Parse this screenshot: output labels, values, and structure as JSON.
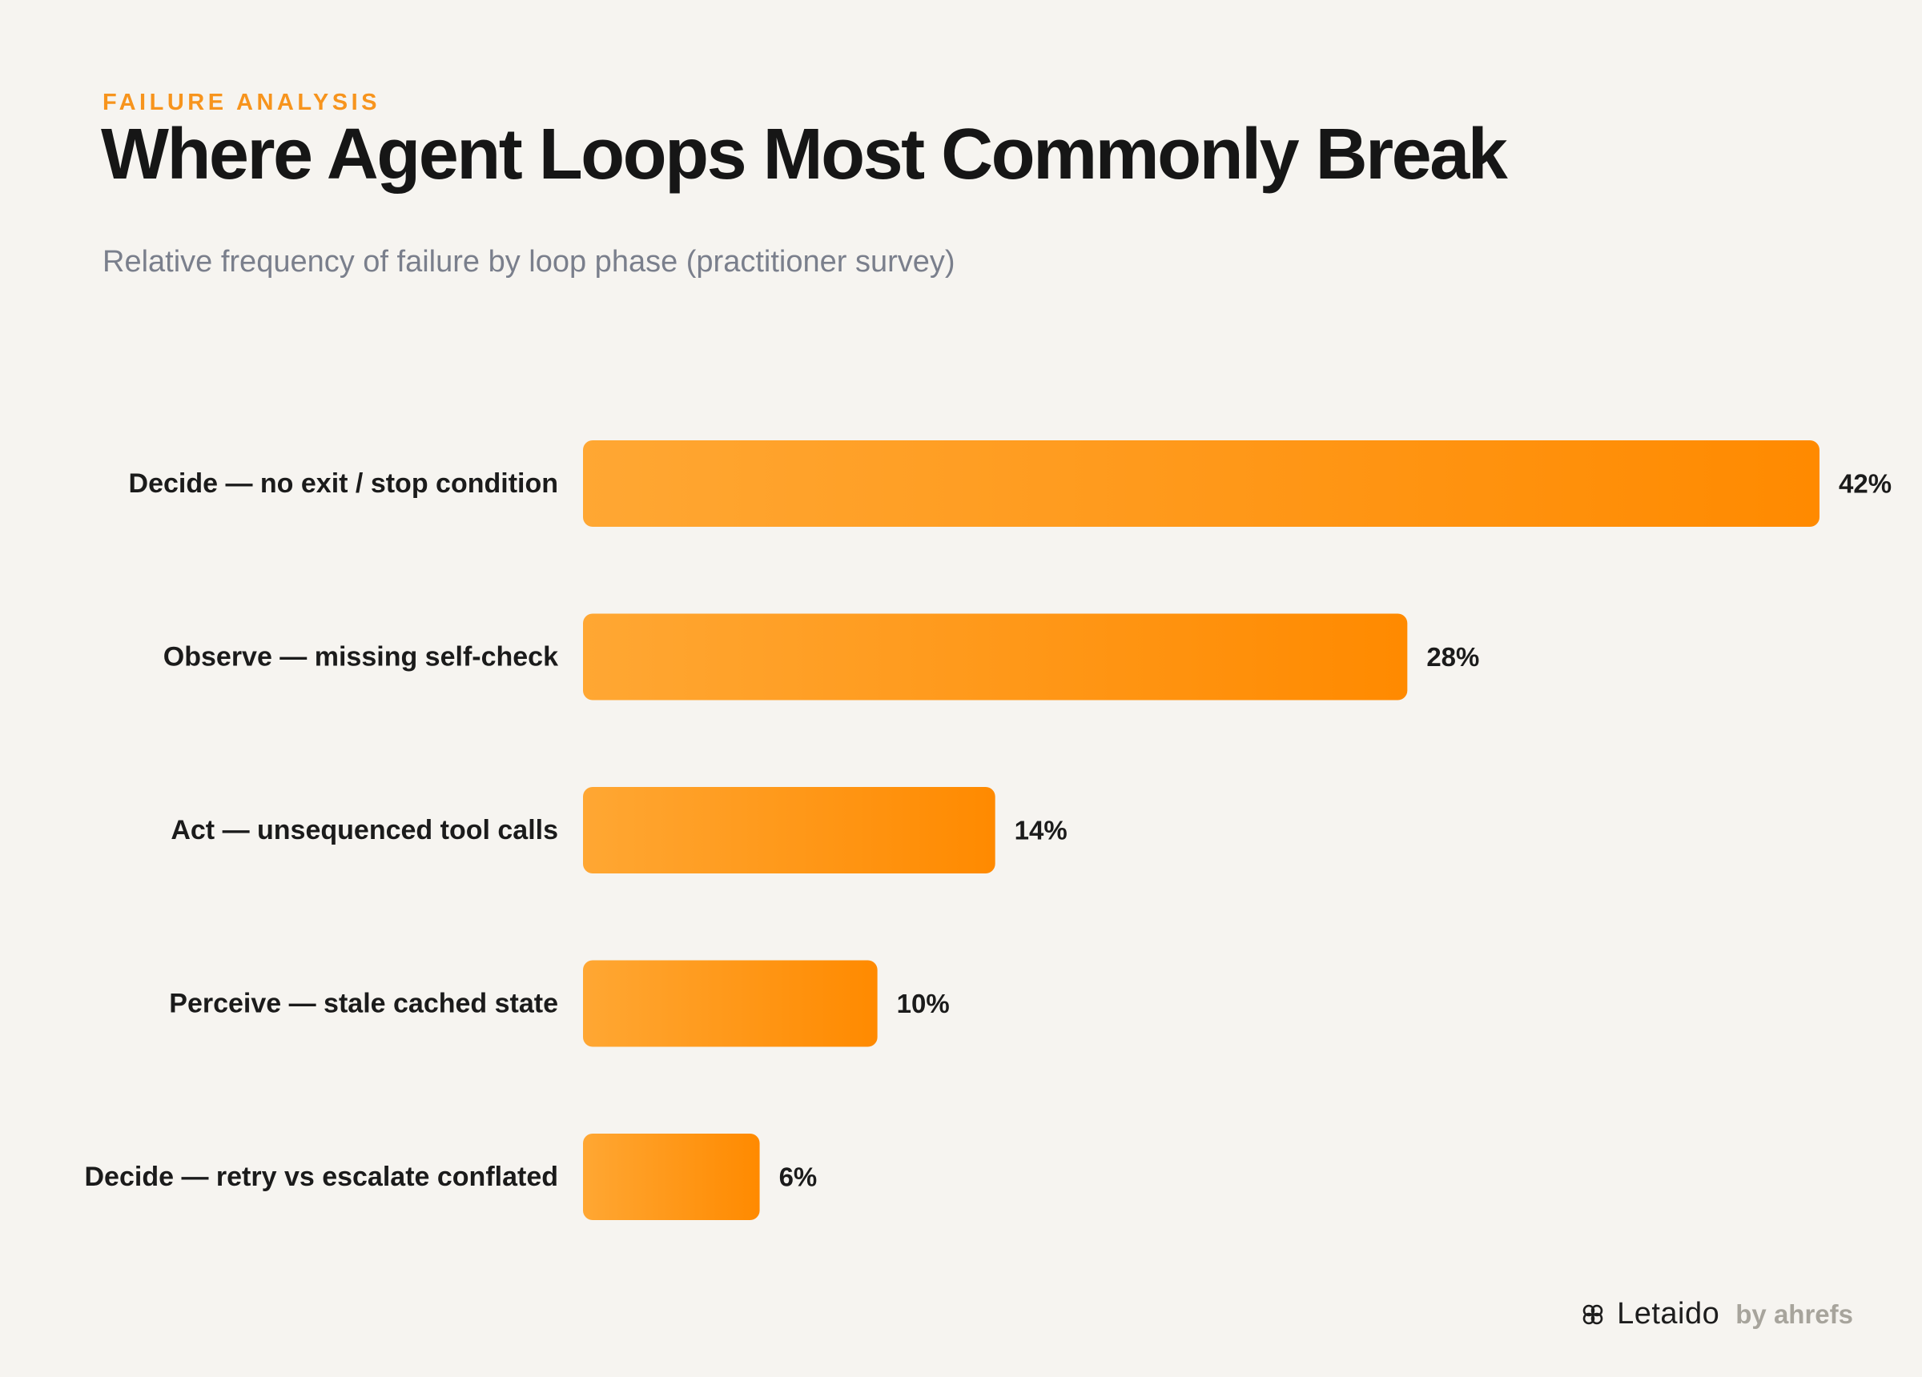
{
  "header": {
    "eyebrow": "FAILURE ANALYSIS",
    "title": "Where Agent Loops Most Commonly Break",
    "subtitle": "Relative frequency of failure by loop phase (practitioner survey)"
  },
  "chart_data": {
    "type": "bar",
    "orientation": "horizontal",
    "categories": [
      "Decide — no exit / stop condition",
      "Observe — missing self-check",
      "Act — unsequenced tool calls",
      "Perceive — stale cached state",
      "Decide — retry vs escalate conflated"
    ],
    "values": [
      42,
      28,
      14,
      10,
      6
    ],
    "value_labels": [
      "42%",
      "28%",
      "14%",
      "10%",
      "6%"
    ],
    "unit": "%",
    "grid": false,
    "legend": "none",
    "bar_gradient": [
      "#ffa733",
      "#ff8a00"
    ]
  },
  "footer": {
    "brand_icon": "clover-icon",
    "brand_name": "Letaido",
    "brand_by": "by ahrefs"
  }
}
